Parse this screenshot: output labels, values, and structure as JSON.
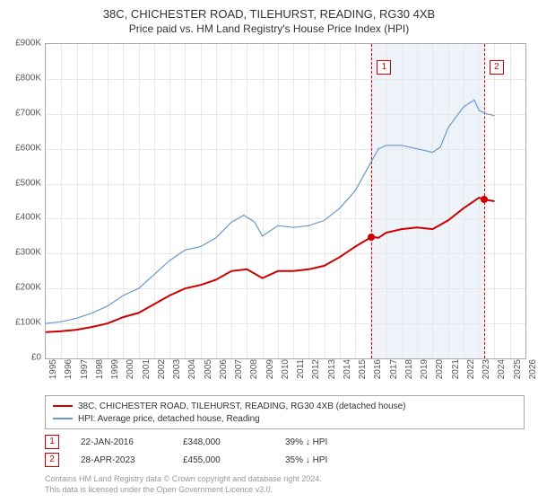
{
  "title_line1": "38C, CHICHESTER ROAD, TILEHURST, READING, RG30 4XB",
  "title_line2": "Price paid vs. HM Land Registry's House Price Index (HPI)",
  "chart": {
    "type": "line",
    "background_color": "#ffffff",
    "grid_color": "#e8e8e8",
    "border_color": "#aaaaaa",
    "ylim": [
      0,
      900000
    ],
    "ytick_step": 100000,
    "ytick_labels": [
      "£0",
      "£100K",
      "£200K",
      "£300K",
      "£400K",
      "£500K",
      "£600K",
      "£700K",
      "£800K",
      "£900K"
    ],
    "xlim": [
      1995,
      2026
    ],
    "xtick_step": 1,
    "xtick_fontsize": 10,
    "ytick_fontsize": 10,
    "shade_range": [
      2016.06,
      2023.32
    ],
    "shade_color": "#eef3fa",
    "event_lines": [
      {
        "x": 2016.06,
        "label": "1"
      },
      {
        "x": 2023.32,
        "label": "2"
      }
    ],
    "event_line_color": "#cc0000",
    "series": [
      {
        "name": "price_paid",
        "color": "#cc0000",
        "width": 2,
        "points": [
          [
            1995,
            75000
          ],
          [
            1996,
            78000
          ],
          [
            1997,
            82000
          ],
          [
            1998,
            90000
          ],
          [
            1999,
            100000
          ],
          [
            2000,
            118000
          ],
          [
            2001,
            130000
          ],
          [
            2002,
            155000
          ],
          [
            2003,
            180000
          ],
          [
            2004,
            200000
          ],
          [
            2005,
            210000
          ],
          [
            2006,
            225000
          ],
          [
            2007,
            250000
          ],
          [
            2008,
            255000
          ],
          [
            2009,
            230000
          ],
          [
            2010,
            250000
          ],
          [
            2011,
            250000
          ],
          [
            2012,
            255000
          ],
          [
            2013,
            265000
          ],
          [
            2014,
            290000
          ],
          [
            2015,
            320000
          ],
          [
            2016.06,
            348000
          ],
          [
            2016.5,
            345000
          ],
          [
            2017,
            360000
          ],
          [
            2018,
            370000
          ],
          [
            2019,
            375000
          ],
          [
            2020,
            370000
          ],
          [
            2021,
            395000
          ],
          [
            2022,
            430000
          ],
          [
            2023,
            460000
          ],
          [
            2023.32,
            455000
          ],
          [
            2024,
            450000
          ]
        ],
        "markers": [
          {
            "x": 2016.06,
            "y": 348000
          },
          {
            "x": 2023.32,
            "y": 455000
          }
        ]
      },
      {
        "name": "hpi",
        "color": "#6699cc",
        "width": 1.2,
        "points": [
          [
            1995,
            100000
          ],
          [
            1996,
            105000
          ],
          [
            1997,
            115000
          ],
          [
            1998,
            130000
          ],
          [
            1999,
            150000
          ],
          [
            2000,
            180000
          ],
          [
            2001,
            200000
          ],
          [
            2002,
            240000
          ],
          [
            2003,
            280000
          ],
          [
            2004,
            310000
          ],
          [
            2005,
            320000
          ],
          [
            2006,
            345000
          ],
          [
            2007,
            390000
          ],
          [
            2007.8,
            410000
          ],
          [
            2008.5,
            390000
          ],
          [
            2009,
            350000
          ],
          [
            2010,
            380000
          ],
          [
            2011,
            375000
          ],
          [
            2012,
            380000
          ],
          [
            2013,
            395000
          ],
          [
            2014,
            430000
          ],
          [
            2015,
            480000
          ],
          [
            2016,
            560000
          ],
          [
            2016.5,
            600000
          ],
          [
            2017,
            610000
          ],
          [
            2018,
            610000
          ],
          [
            2019,
            600000
          ],
          [
            2020,
            590000
          ],
          [
            2020.5,
            605000
          ],
          [
            2021,
            660000
          ],
          [
            2022,
            720000
          ],
          [
            2022.7,
            740000
          ],
          [
            2023,
            710000
          ],
          [
            2023.5,
            700000
          ],
          [
            2024,
            695000
          ]
        ]
      }
    ]
  },
  "legend": {
    "items": [
      {
        "color": "#cc0000",
        "label": "38C, CHICHESTER ROAD, TILEHURST, READING, RG30 4XB (detached house)"
      },
      {
        "color": "#6699cc",
        "label": "HPI: Average price, detached house, Reading"
      }
    ]
  },
  "events": [
    {
      "badge": "1",
      "date": "22-JAN-2016",
      "price": "£348,000",
      "pct": "39%",
      "dir": "↓",
      "ref": "HPI"
    },
    {
      "badge": "2",
      "date": "28-APR-2023",
      "price": "£455,000",
      "pct": "35%",
      "dir": "↓",
      "ref": "HPI"
    }
  ],
  "footer_line1": "Contains HM Land Registry data © Crown copyright and database right 2024.",
  "footer_line2": "This data is licensed under the Open Government Licence v3.0."
}
